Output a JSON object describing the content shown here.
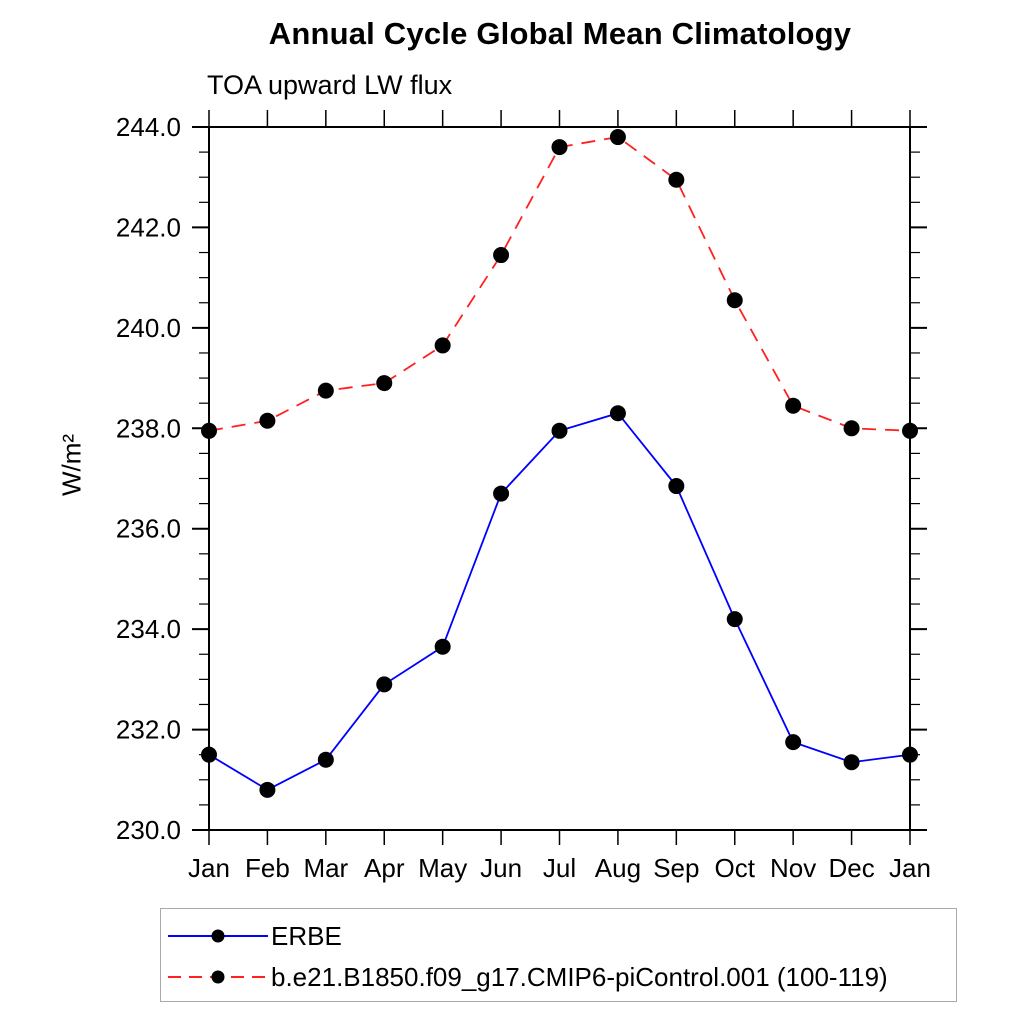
{
  "chart_data": {
    "type": "line",
    "title": "Annual Cycle Global Mean Climatology",
    "subtitle": "TOA upward LW flux",
    "ylabel": "W/m²",
    "xlabel": "",
    "categories": [
      "Jan",
      "Feb",
      "Mar",
      "Apr",
      "May",
      "Jun",
      "Jul",
      "Aug",
      "Sep",
      "Oct",
      "Nov",
      "Dec",
      "Jan"
    ],
    "series": [
      {
        "name": "ERBE",
        "color": "#0000ff",
        "dashed": false,
        "marker": "filled-circle",
        "values": [
          231.5,
          230.8,
          231.4,
          232.9,
          233.65,
          236.7,
          237.95,
          238.3,
          236.85,
          234.2,
          231.75,
          231.35,
          231.5
        ]
      },
      {
        "name": "b.e21.B1850.f09_g17.CMIP6-piControl.001 (100-119)",
        "color": "#ff2020",
        "dashed": true,
        "marker": "filled-circle",
        "values": [
          237.95,
          238.15,
          238.75,
          238.9,
          239.65,
          241.45,
          243.6,
          243.8,
          242.95,
          240.55,
          238.45,
          238.0,
          237.95
        ]
      }
    ],
    "ylim": [
      230.0,
      244.0
    ],
    "ytick_major": 2.0,
    "ytick_minor": 0.5,
    "ytick_decimals": 1,
    "marker_color": "#000000",
    "axis_color": "#000000",
    "grid": false,
    "legend_position": "bottom-left"
  }
}
